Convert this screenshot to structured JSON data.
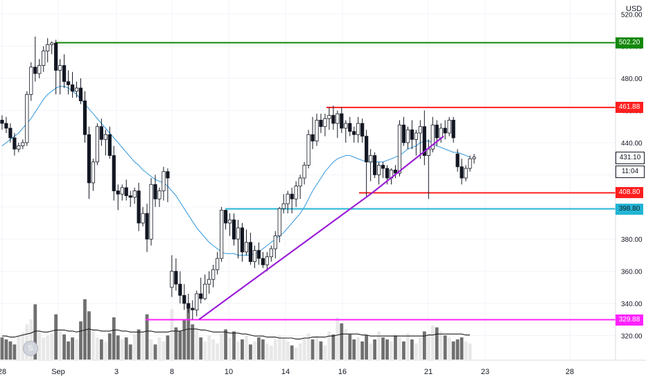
{
  "chart_data": {
    "type": "candlestick",
    "currency": "USD",
    "x_tick_labels": [
      "28",
      "Sep",
      "3",
      "8",
      "10",
      "14",
      "16",
      "21",
      "23",
      "28"
    ],
    "y_ticks": [
      320,
      340,
      360,
      380,
      400,
      420,
      440,
      460,
      480,
      500,
      520
    ],
    "y_tick_labels": [
      "320.00",
      "340.00",
      "360.00",
      "380.00",
      "400.00",
      "420.00",
      "440.00",
      "460.00",
      "480.00",
      "500.00",
      "520.00"
    ],
    "ylim": [
      312,
      524
    ],
    "candles": [
      [
        454,
        457,
        448,
        452
      ],
      [
        452,
        456,
        446,
        449
      ],
      [
        449,
        452,
        440,
        443
      ],
      [
        443,
        446,
        432,
        436
      ],
      [
        436,
        440,
        434,
        438
      ],
      [
        438,
        442,
        436,
        440
      ],
      [
        440,
        472,
        438,
        470
      ],
      [
        470,
        490,
        466,
        487
      ],
      [
        487,
        506,
        478,
        483
      ],
      [
        483,
        492,
        480,
        488
      ],
      [
        488,
        500,
        484,
        497
      ],
      [
        497,
        505,
        490,
        501
      ],
      [
        501,
        503,
        495,
        502
      ],
      [
        502,
        504,
        470,
        485
      ],
      [
        485,
        492,
        470,
        488
      ],
      [
        488,
        495,
        474,
        478
      ],
      [
        478,
        485,
        470,
        476
      ],
      [
        476,
        484,
        468,
        472
      ],
      [
        472,
        478,
        468,
        474
      ],
      [
        474,
        480,
        464,
        466
      ],
      [
        466,
        472,
        440,
        445
      ],
      [
        445,
        450,
        405,
        415
      ],
      [
        415,
        430,
        410,
        428
      ],
      [
        428,
        452,
        426,
        450
      ],
      [
        450,
        455,
        438,
        442
      ],
      [
        442,
        448,
        432,
        445
      ],
      [
        445,
        450,
        430,
        432
      ],
      [
        432,
        438,
        404,
        410
      ],
      [
        410,
        414,
        398,
        408
      ],
      [
        408,
        414,
        404,
        412
      ],
      [
        412,
        417,
        404,
        407
      ],
      [
        407,
        410,
        400,
        406
      ],
      [
        406,
        412,
        402,
        410
      ],
      [
        410,
        415,
        385,
        390
      ],
      [
        390,
        400,
        388,
        396
      ],
      [
        396,
        402,
        372,
        380
      ],
      [
        380,
        418,
        376,
        414
      ],
      [
        414,
        420,
        400,
        405
      ],
      [
        405,
        412,
        400,
        410
      ],
      [
        410,
        425,
        404,
        422
      ],
      [
        422,
        424,
        403,
        418
      ],
      [
        350,
        370,
        344,
        360
      ],
      [
        360,
        368,
        348,
        352
      ],
      [
        352,
        360,
        340,
        345
      ],
      [
        345,
        352,
        336,
        340
      ],
      [
        340,
        346,
        334,
        337
      ],
      [
        337,
        342,
        330,
        336
      ],
      [
        336,
        348,
        332,
        346
      ],
      [
        346,
        356,
        340,
        343
      ],
      [
        343,
        358,
        342,
        352
      ],
      [
        352,
        360,
        346,
        355
      ],
      [
        355,
        364,
        350,
        361
      ],
      [
        361,
        372,
        358,
        368
      ],
      [
        368,
        400,
        366,
        398
      ],
      [
        398,
        398,
        386,
        390
      ],
      [
        390,
        396,
        382,
        392
      ],
      [
        392,
        396,
        376,
        380
      ],
      [
        380,
        392,
        368,
        387
      ],
      [
        387,
        390,
        366,
        372
      ],
      [
        372,
        386,
        370,
        378
      ],
      [
        378,
        384,
        364,
        366
      ],
      [
        366,
        376,
        362,
        373
      ],
      [
        373,
        378,
        364,
        368
      ],
      [
        368,
        372,
        362,
        364
      ],
      [
        364,
        372,
        360,
        369
      ],
      [
        369,
        376,
        366,
        374
      ],
      [
        374,
        385,
        368,
        382
      ],
      [
        382,
        400,
        378,
        399
      ],
      [
        399,
        408,
        396,
        402
      ],
      [
        402,
        410,
        396,
        408
      ],
      [
        408,
        412,
        396,
        405
      ],
      [
        405,
        416,
        400,
        413
      ],
      [
        413,
        420,
        405,
        418
      ],
      [
        418,
        428,
        414,
        426
      ],
      [
        426,
        448,
        424,
        445
      ],
      [
        445,
        456,
        436,
        441
      ],
      [
        441,
        458,
        438,
        454
      ],
      [
        454,
        458,
        446,
        450
      ],
      [
        450,
        458,
        444,
        455
      ],
      [
        455,
        462,
        448,
        457
      ],
      [
        457,
        463,
        448,
        452
      ],
      [
        452,
        460,
        443,
        458
      ],
      [
        458,
        462,
        446,
        449
      ],
      [
        449,
        454,
        440,
        452
      ],
      [
        452,
        456,
        444,
        447
      ],
      [
        447,
        450,
        440,
        445
      ],
      [
        445,
        456,
        440,
        452
      ],
      [
        452,
        455,
        440,
        444
      ],
      [
        444,
        448,
        406,
        428
      ],
      [
        428,
        436,
        416,
        432
      ],
      [
        432,
        434,
        418,
        420
      ],
      [
        420,
        428,
        414,
        426
      ],
      [
        426,
        428,
        418,
        424
      ],
      [
        424,
        426,
        414,
        418
      ],
      [
        418,
        424,
        414,
        423
      ],
      [
        423,
        426,
        418,
        421
      ],
      [
        421,
        454,
        419,
        451
      ],
      [
        451,
        456,
        438,
        440
      ],
      [
        440,
        450,
        436,
        448
      ],
      [
        448,
        454,
        436,
        442
      ],
      [
        442,
        448,
        432,
        446
      ],
      [
        446,
        454,
        430,
        450
      ],
      [
        450,
        460,
        426,
        432
      ],
      [
        432,
        442,
        405,
        436
      ],
      [
        436,
        456,
        434,
        451
      ],
      [
        451,
        454,
        438,
        443
      ],
      [
        443,
        452,
        440,
        449
      ],
      [
        449,
        454,
        442,
        446
      ],
      [
        446,
        456,
        444,
        454
      ],
      [
        454,
        456,
        440,
        443
      ],
      [
        433,
        436,
        422,
        425
      ],
      [
        425,
        430,
        414,
        418
      ],
      [
        418,
        426,
        416,
        424
      ],
      [
        424,
        432,
        422,
        430
      ],
      [
        430,
        433,
        427,
        431
      ]
    ],
    "volumes": [
      22,
      20,
      18,
      15,
      24,
      27,
      35,
      40,
      55,
      28,
      22,
      24,
      26,
      45,
      30,
      25,
      18,
      22,
      20,
      38,
      60,
      48,
      30,
      22,
      20,
      18,
      26,
      42,
      24,
      20,
      22,
      15,
      25,
      30,
      28,
      45,
      20,
      15,
      22,
      18,
      24,
      50,
      32,
      28,
      40,
      52,
      35,
      30,
      22,
      18,
      24,
      20,
      16,
      26,
      30,
      22,
      28,
      18,
      20,
      24,
      15,
      18,
      22,
      20,
      16,
      14,
      20,
      24,
      22,
      18,
      14,
      12,
      16,
      22,
      26,
      20,
      24,
      18,
      14,
      28,
      25,
      42,
      36,
      30,
      25,
      20,
      22,
      18,
      24,
      16,
      20,
      28,
      22,
      20,
      18,
      24,
      22,
      18,
      26,
      20,
      16,
      22,
      28,
      26,
      34,
      32,
      28,
      24,
      22,
      18,
      20,
      22,
      18,
      16
    ],
    "ma20": [
      438,
      440,
      442,
      444,
      446,
      449,
      452,
      455,
      459,
      463,
      467,
      470,
      472,
      474,
      475,
      475,
      474,
      472,
      470,
      467,
      464,
      461,
      458,
      455,
      452,
      449,
      446,
      443,
      440,
      437,
      434,
      431,
      428,
      426,
      423,
      421,
      419,
      417,
      416,
      415,
      413,
      410,
      407,
      403,
      399,
      395,
      391,
      387,
      384,
      381,
      378,
      376,
      374,
      372,
      371,
      371,
      371,
      370,
      370,
      370,
      370,
      371,
      372,
      374,
      376,
      378,
      380,
      382,
      384,
      387,
      390,
      393,
      396,
      400,
      405,
      410,
      414,
      418,
      422,
      425,
      428,
      430,
      431,
      432,
      432,
      431,
      430,
      429,
      428,
      428,
      428,
      428,
      428,
      429,
      430,
      431,
      432,
      434,
      436,
      437,
      438,
      440,
      441,
      441,
      440,
      438,
      437,
      436,
      435,
      434,
      434,
      433,
      432,
      431
    ],
    "volume_ma": [
      22,
      22,
      21,
      21,
      22,
      23,
      24,
      25,
      27,
      27,
      26,
      26,
      27,
      28,
      28,
      28,
      27,
      27,
      26,
      27,
      28,
      29,
      28,
      28,
      27,
      27,
      27,
      28,
      28,
      27,
      27,
      26,
      26,
      26,
      26,
      27,
      27,
      26,
      26,
      26,
      26,
      27,
      27,
      27,
      28,
      29,
      29,
      29,
      28,
      28,
      27,
      26,
      26,
      26,
      26,
      25,
      25,
      25,
      24,
      24,
      23,
      22,
      22,
      22,
      21,
      21,
      21,
      20,
      20,
      20,
      20,
      19,
      19,
      20,
      20,
      21,
      21,
      21,
      21,
      22,
      22,
      23,
      24,
      24,
      24,
      24,
      24,
      23,
      23,
      22,
      22,
      22,
      22,
      22,
      22,
      22,
      22,
      22,
      22,
      22,
      22,
      22,
      22,
      23,
      23,
      24,
      24,
      24,
      24,
      24,
      24,
      24,
      23,
      23
    ],
    "horizontal_lines": [
      {
        "price": 502.2,
        "label": "502.20",
        "color": "#138808"
      },
      {
        "price": 461.88,
        "label": "461.88",
        "color": "#ff1f1f"
      },
      {
        "price": 408.8,
        "label": "408.80",
        "color": "#ff1f1f"
      },
      {
        "price": 398.8,
        "label": "398.80",
        "color": "#22b5d4"
      },
      {
        "price": 329.88,
        "label": "329.88",
        "color": "#ff22ff"
      }
    ],
    "trendline_color": "#9b1ed6",
    "ma_color": "#3f9ee0",
    "last_price": {
      "label": "431.10",
      "time": "11:04"
    }
  }
}
